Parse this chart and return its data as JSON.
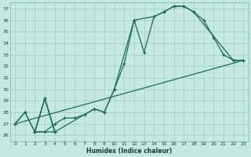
{
  "xlabel": "Humidex (Indice chaleur)",
  "bg_color": "#c5e8e0",
  "grid_color": "#aad4ca",
  "line_color": "#1a6b5a",
  "xlim": [
    -0.5,
    23.5
  ],
  "ylim": [
    25.5,
    37.5
  ],
  "xticks": [
    0,
    1,
    2,
    3,
    4,
    5,
    6,
    7,
    8,
    9,
    10,
    11,
    12,
    13,
    14,
    15,
    16,
    17,
    18,
    19,
    20,
    21,
    22,
    23
  ],
  "yticks": [
    26,
    27,
    28,
    29,
    30,
    31,
    32,
    33,
    34,
    35,
    36,
    37
  ],
  "line1_x": [
    0,
    1,
    2,
    3,
    4,
    5,
    6,
    7,
    8,
    9,
    10,
    11,
    12,
    13,
    14,
    15,
    16,
    17,
    18,
    19,
    20,
    21,
    22,
    23
  ],
  "line1_y": [
    27.0,
    28.0,
    26.3,
    26.3,
    27.0,
    27.5,
    27.5,
    27.8,
    28.3,
    28.0,
    30.0,
    32.2,
    36.0,
    33.2,
    36.3,
    36.7,
    37.2,
    37.2,
    36.7,
    36.0,
    34.5,
    33.0,
    32.5,
    32.5
  ],
  "line2_x": [
    0,
    1,
    2,
    3,
    4,
    3,
    2,
    4,
    7,
    8,
    9,
    10,
    12,
    14,
    15,
    16,
    17,
    18,
    22,
    23
  ],
  "line2_y": [
    27.0,
    28.0,
    26.3,
    29.2,
    26.3,
    29.2,
    26.3,
    26.3,
    27.8,
    28.3,
    28.0,
    30.0,
    36.0,
    36.3,
    36.7,
    37.2,
    37.2,
    36.7,
    32.5,
    32.5
  ],
  "line3_x": [
    0,
    23
  ],
  "line3_y": [
    27.0,
    32.5
  ]
}
